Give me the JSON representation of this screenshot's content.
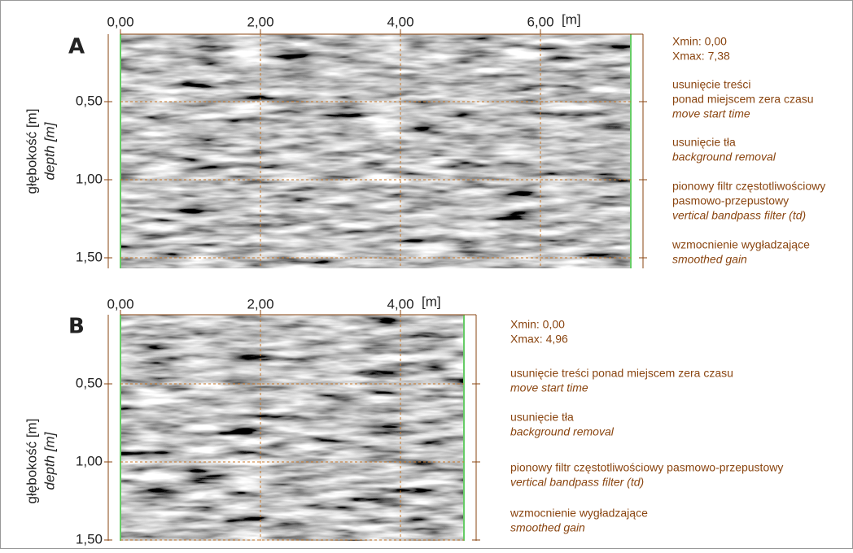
{
  "panels": [
    {
      "label": "A",
      "x_ticks": [
        "0,00",
        "2,00",
        "4,00",
        "6,00"
      ],
      "x_unit": "[m]",
      "y_ticks": [
        "0,50",
        "1,00",
        "1,50"
      ],
      "y_label": "głębokość [m]",
      "y_label_en": "depth [m]",
      "notes": [
        [
          {
            "text": "Xmin: 0,00"
          },
          {
            "text": "Xmax: 7,38"
          }
        ],
        [
          {
            "text": "usunięcie treści"
          },
          {
            "text": "ponad miejscem zera czasu"
          },
          {
            "text": "move start time",
            "italic": true
          }
        ],
        [
          {
            "text": "usunięcie tła"
          },
          {
            "text": "background removal",
            "italic": true
          }
        ],
        [
          {
            "text": "pionowy filtr częstotliwościowy"
          },
          {
            "text": "pasmowo-przepustowy"
          },
          {
            "text": "vertical bandpass filter (td)",
            "italic": true
          }
        ],
        [
          {
            "text": "wzmocnienie wygładzające"
          },
          {
            "text": "smoothed gain",
            "italic": true
          }
        ]
      ]
    },
    {
      "label": "B",
      "x_ticks": [
        "0,00",
        "2,00",
        "4,00"
      ],
      "x_unit": "[m]",
      "y_ticks": [
        "0,50",
        "1,00",
        "1,50"
      ],
      "y_label": "głębokość [m]",
      "y_label_en": "depth [m]",
      "notes": [
        [
          {
            "text": "Xmin: 0,00"
          },
          {
            "text": "Xmax: 4,96"
          }
        ],
        [
          {
            "text": "usunięcie treści ponad miejscem zera czasu"
          },
          {
            "text": "move start time",
            "italic": true
          }
        ],
        [
          {
            "text": "usunięcie tła"
          },
          {
            "text": "background removal",
            "italic": true
          }
        ],
        [
          {
            "text": "pionowy filtr częstotliwościowy pasmowo-przepustowy"
          },
          {
            "text": "vertical bandpass filter (td)",
            "italic": true
          }
        ],
        [
          {
            "text": "wzmocnienie wygładzające"
          },
          {
            "text": "smoothed gain",
            "italic": true
          }
        ]
      ]
    }
  ]
}
